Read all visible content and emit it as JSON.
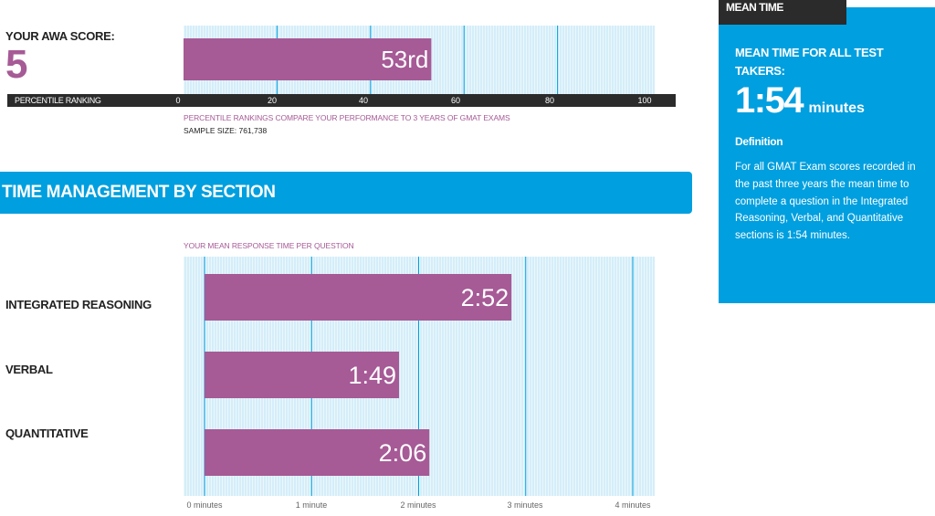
{
  "awa": {
    "label": "YOUR AWA SCORE:",
    "score": "5",
    "percentile_label": "53rd",
    "axis_title": "PERCENTILE RANKING",
    "ticks": [
      "0",
      "20",
      "40",
      "60",
      "80",
      "100"
    ],
    "note": "PERCENTILE RANKINGS COMPARE YOUR PERFORMANCE TO 3 YEARS OF GMAT EXAMS",
    "sample_size": "SAMPLE SIZE: 761,738"
  },
  "time_management": {
    "title": "TIME MANAGEMENT BY SECTION",
    "response_label": "YOUR MEAN RESPONSE TIME PER QUESTION",
    "x_ticks": [
      "0 minutes",
      "1 minute",
      "2 minutes",
      "3 minutes",
      "4 minutes"
    ],
    "sections": [
      {
        "name": "INTEGRATED REASONING",
        "time": "2:52"
      },
      {
        "name": "VERBAL",
        "time": "1:49"
      },
      {
        "name": "QUANTITATIVE",
        "time": "2:06"
      }
    ]
  },
  "sidebar": {
    "tab": "MEAN TIME",
    "heading": "MEAN TIME FOR ALL TEST TAKERS:",
    "value": "1:54",
    "unit": "minutes",
    "definition_title": "Definition",
    "definition_text": "For all GMAT Exam scores recorded in the past three years the mean time to complete a question in the Integrated Reasoning, Verbal, and Quantitative sections is 1:54 minutes."
  },
  "colors": {
    "bar": "#a65a96",
    "plot_bg": "#d4eef9",
    "accent": "#009fdf",
    "dark": "#2b2b2b"
  },
  "chart_data": [
    {
      "type": "bar",
      "orientation": "horizontal",
      "categories": [
        "AWA"
      ],
      "values": [
        53
      ],
      "data_labels": [
        "53rd"
      ],
      "xlabel": "PERCENTILE RANKING",
      "xlim": [
        0,
        100
      ],
      "xticks": [
        0,
        20,
        40,
        60,
        80,
        100
      ]
    },
    {
      "type": "bar",
      "orientation": "horizontal",
      "categories": [
        "INTEGRATED REASONING",
        "VERBAL",
        "QUANTITATIVE"
      ],
      "values": [
        2.867,
        1.817,
        2.1
      ],
      "data_labels": [
        "2:52",
        "1:49",
        "2:06"
      ],
      "xlim": [
        0,
        4
      ],
      "xticks": [
        "0 minutes",
        "1 minute",
        "2 minutes",
        "3 minutes",
        "4 minutes"
      ]
    }
  ]
}
